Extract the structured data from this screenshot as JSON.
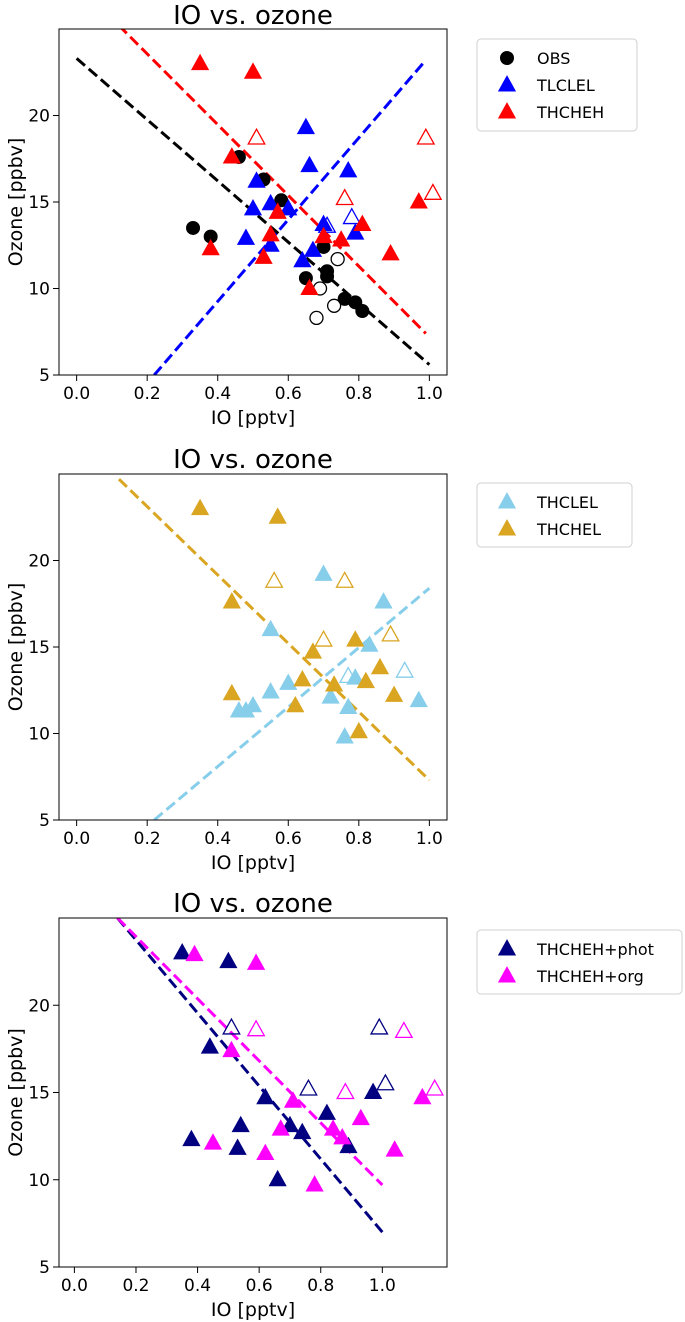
{
  "chart_data": [
    {
      "type": "scatter",
      "title": "IO vs. ozone",
      "xlabel": "IO [pptv]",
      "ylabel": "Ozone [ppbv]",
      "xlim": [
        -0.05,
        1.05
      ],
      "ylim": [
        5,
        25
      ],
      "xticks": [
        "0.0",
        "0.2",
        "0.4",
        "0.6",
        "0.8",
        "1.0"
      ],
      "yticks": [
        "5",
        "10",
        "15",
        "20"
      ],
      "legend_position": "outside-right",
      "legend": [
        {
          "label": "OBS",
          "marker": "circle",
          "color": "#000000"
        },
        {
          "label": "TLCLEL",
          "marker": "triangle",
          "color": "#0000ff"
        },
        {
          "label": "THCHEH",
          "marker": "triangle",
          "color": "#ff0000"
        }
      ],
      "series": [
        {
          "name": "OBS",
          "marker": "circle",
          "color": "#000000",
          "filled": [
            [
              0.33,
              13.5
            ],
            [
              0.38,
              13.0
            ],
            [
              0.46,
              17.6
            ],
            [
              0.53,
              16.3
            ],
            [
              0.58,
              15.1
            ],
            [
              0.65,
              10.6
            ],
            [
              0.7,
              12.4
            ],
            [
              0.71,
              11.0
            ],
            [
              0.71,
              10.7
            ],
            [
              0.76,
              9.4
            ],
            [
              0.79,
              9.2
            ],
            [
              0.81,
              8.7
            ]
          ],
          "open": [
            [
              0.68,
              8.3
            ],
            [
              0.69,
              10.0
            ],
            [
              0.73,
              9.0
            ],
            [
              0.74,
              11.7
            ]
          ]
        },
        {
          "name": "TLCLEL",
          "marker": "triangle",
          "color": "#0000ff",
          "filled": [
            [
              0.48,
              12.9
            ],
            [
              0.5,
              14.6
            ],
            [
              0.51,
              16.2
            ],
            [
              0.55,
              12.5
            ],
            [
              0.55,
              14.9
            ],
            [
              0.6,
              14.6
            ],
            [
              0.64,
              11.6
            ],
            [
              0.65,
              19.3
            ],
            [
              0.66,
              17.1
            ],
            [
              0.67,
              12.2
            ],
            [
              0.7,
              13.7
            ],
            [
              0.77,
              16.8
            ],
            [
              0.79,
              13.2
            ]
          ],
          "open": [
            [
              0.71,
              13.6
            ],
            [
              0.78,
              14.1
            ]
          ]
        },
        {
          "name": "THCHEH",
          "marker": "triangle",
          "color": "#ff0000",
          "filled": [
            [
              0.35,
              23.0
            ],
            [
              0.38,
              12.3
            ],
            [
              0.44,
              17.6
            ],
            [
              0.5,
              22.5
            ],
            [
              0.53,
              11.8
            ],
            [
              0.55,
              13.1
            ],
            [
              0.57,
              14.4
            ],
            [
              0.66,
              10.0
            ],
            [
              0.7,
              13.0
            ],
            [
              0.75,
              12.8
            ],
            [
              0.81,
              13.7
            ],
            [
              0.89,
              12.0
            ],
            [
              0.97,
              15.0
            ]
          ],
          "open": [
            [
              0.51,
              18.7
            ],
            [
              0.76,
              15.2
            ],
            [
              0.99,
              18.7
            ],
            [
              1.01,
              15.5
            ]
          ]
        }
      ],
      "fit_lines": [
        {
          "name": "OBS fit",
          "color": "#000000",
          "x": [
            0.0,
            1.0
          ],
          "y": [
            23.3,
            5.6
          ]
        },
        {
          "name": "TLCLEL fit",
          "color": "#0000ff",
          "x": [
            0.22,
            0.99
          ],
          "y": [
            5.0,
            23.2
          ]
        },
        {
          "name": "THCHEH fit",
          "color": "#ff0000",
          "x": [
            0.12,
            0.99
          ],
          "y": [
            25.2,
            7.4
          ]
        }
      ]
    },
    {
      "type": "scatter",
      "title": "IO vs. ozone",
      "xlabel": "IO [pptv]",
      "ylabel": "Ozone [ppbv]",
      "xlim": [
        -0.05,
        1.05
      ],
      "ylim": [
        5,
        25
      ],
      "xticks": [
        "0.0",
        "0.2",
        "0.4",
        "0.6",
        "0.8",
        "1.0"
      ],
      "yticks": [
        "5",
        "10",
        "15",
        "20"
      ],
      "legend_position": "outside-right",
      "legend": [
        {
          "label": "THCLEL",
          "marker": "triangle",
          "color": "#87ceeb"
        },
        {
          "label": "THCHEL",
          "marker": "triangle",
          "color": "#daa520"
        }
      ],
      "series": [
        {
          "name": "THCLEL",
          "marker": "triangle",
          "color": "#87ceeb",
          "filled": [
            [
              0.46,
              11.3
            ],
            [
              0.48,
              11.3
            ],
            [
              0.5,
              11.6
            ],
            [
              0.55,
              12.4
            ],
            [
              0.55,
              16.0
            ],
            [
              0.6,
              12.9
            ],
            [
              0.7,
              19.2
            ],
            [
              0.72,
              12.1
            ],
            [
              0.76,
              9.8
            ],
            [
              0.77,
              11.5
            ],
            [
              0.79,
              13.2
            ],
            [
              0.83,
              15.1
            ],
            [
              0.87,
              17.6
            ],
            [
              0.97,
              11.9
            ]
          ],
          "open": [
            [
              0.77,
              13.3
            ],
            [
              0.93,
              13.6
            ]
          ]
        },
        {
          "name": "THCHEL",
          "marker": "triangle",
          "color": "#daa520",
          "filled": [
            [
              0.35,
              23.0
            ],
            [
              0.44,
              12.3
            ],
            [
              0.44,
              17.6
            ],
            [
              0.57,
              22.5
            ],
            [
              0.62,
              11.6
            ],
            [
              0.64,
              13.1
            ],
            [
              0.67,
              14.7
            ],
            [
              0.73,
              12.8
            ],
            [
              0.79,
              15.4
            ],
            [
              0.8,
              10.1
            ],
            [
              0.82,
              13.0
            ],
            [
              0.86,
              13.8
            ],
            [
              0.9,
              12.2
            ]
          ],
          "open": [
            [
              0.56,
              18.8
            ],
            [
              0.7,
              15.4
            ],
            [
              0.76,
              18.8
            ],
            [
              0.89,
              15.7
            ]
          ]
        }
      ],
      "fit_lines": [
        {
          "name": "THCLEL fit",
          "color": "#87ceeb",
          "x": [
            0.22,
            1.0
          ],
          "y": [
            5.0,
            18.4
          ]
        },
        {
          "name": "THCHEL fit",
          "color": "#daa520",
          "x": [
            0.12,
            1.0
          ],
          "y": [
            24.7,
            7.3
          ]
        }
      ]
    },
    {
      "type": "scatter",
      "title": "IO vs. ozone",
      "xlabel": "IO [pptv]",
      "ylabel": "Ozone [ppbv]",
      "xlim": [
        -0.05,
        1.21
      ],
      "ylim": [
        5,
        25
      ],
      "xticks": [
        "0.0",
        "0.2",
        "0.4",
        "0.6",
        "0.8",
        "1.0"
      ],
      "yticks": [
        "5",
        "10",
        "15",
        "20"
      ],
      "legend_position": "outside-right",
      "legend": [
        {
          "label": "THCHEH+phot",
          "marker": "triangle",
          "color": "#000080"
        },
        {
          "label": "THCHEH+org",
          "marker": "triangle",
          "color": "#ff00ff"
        }
      ],
      "series": [
        {
          "name": "THCHEH+phot",
          "marker": "triangle",
          "color": "#000080",
          "filled": [
            [
              0.35,
              23.0
            ],
            [
              0.38,
              12.3
            ],
            [
              0.44,
              17.6
            ],
            [
              0.5,
              22.5
            ],
            [
              0.53,
              11.8
            ],
            [
              0.54,
              13.1
            ],
            [
              0.62,
              14.7
            ],
            [
              0.66,
              10.0
            ],
            [
              0.7,
              13.1
            ],
            [
              0.74,
              12.7
            ],
            [
              0.82,
              13.8
            ],
            [
              0.89,
              11.9
            ],
            [
              0.97,
              15.0
            ]
          ],
          "open": [
            [
              0.51,
              18.7
            ],
            [
              0.76,
              15.2
            ],
            [
              0.99,
              18.7
            ],
            [
              1.01,
              15.5
            ]
          ]
        },
        {
          "name": "THCHEH+org",
          "marker": "triangle",
          "color": "#ff00ff",
          "filled": [
            [
              0.39,
              22.9
            ],
            [
              0.45,
              12.1
            ],
            [
              0.51,
              17.4
            ],
            [
              0.59,
              22.4
            ],
            [
              0.62,
              11.5
            ],
            [
              0.67,
              12.9
            ],
            [
              0.71,
              14.5
            ],
            [
              0.78,
              9.7
            ],
            [
              0.84,
              12.9
            ],
            [
              0.87,
              12.4
            ],
            [
              0.93,
              13.5
            ],
            [
              1.04,
              11.7
            ],
            [
              1.13,
              14.7
            ]
          ],
          "open": [
            [
              0.59,
              18.6
            ],
            [
              0.88,
              15.0
            ],
            [
              1.07,
              18.5
            ],
            [
              1.17,
              15.2
            ]
          ]
        }
      ],
      "fit_lines": [
        {
          "name": "THCHEH+phot fit",
          "color": "#000080",
          "x": [
            0.14,
            1.0
          ],
          "y": [
            25.0,
            7.0
          ]
        },
        {
          "name": "THCHEH+org fit",
          "color": "#ff00ff",
          "x": [
            0.14,
            1.0
          ],
          "y": [
            25.0,
            9.7
          ]
        }
      ]
    }
  ]
}
